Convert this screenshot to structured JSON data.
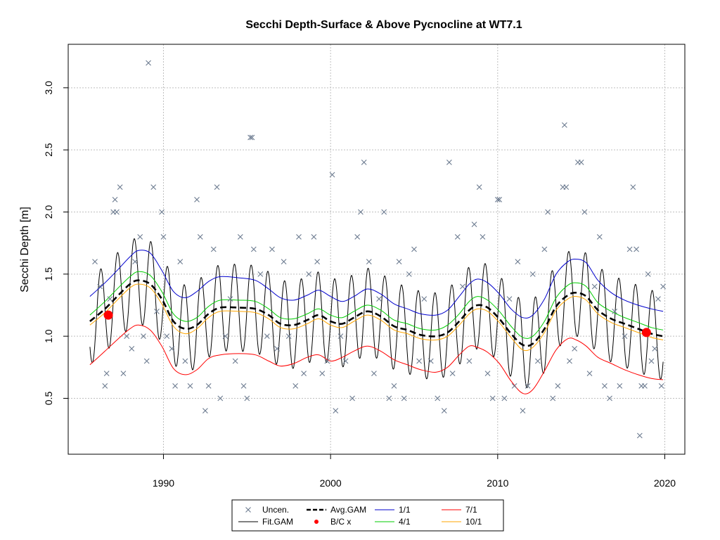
{
  "chart_data": {
    "type": "line",
    "title": "Secchi Depth-Surface & Above Pycnocline at WT7.1",
    "xlabel": "",
    "ylabel": "Secchi Depth [m]",
    "xlim": [
      1984.3,
      2021.2
    ],
    "ylim": [
      0.05,
      3.35
    ],
    "x_ticks": [
      1990,
      2000,
      2010,
      2020
    ],
    "x_tick_labels": [
      "1990",
      "2000",
      "2010",
      "2020"
    ],
    "y_ticks": [
      0.5,
      1.0,
      1.5,
      2.0,
      2.5,
      3.0
    ],
    "y_tick_labels": [
      "0.5",
      "1.0",
      "1.5",
      "2.0",
      "2.5",
      "3.0"
    ],
    "grid": true,
    "legend_position": "bottom-center",
    "colors": {
      "uncen": "#6b7a8f",
      "fit_gam": "#000000",
      "avg_gam": "#000000",
      "bc_x": "#ff0000",
      "ci_1_1": "#0000cd",
      "ci_4_1": "#00cd00",
      "ci_7_1": "#ff0000",
      "ci_10_1": "#ffa500",
      "grid": "#bfbfbf"
    },
    "legend": [
      {
        "key": "uncen",
        "label": "Uncen."
      },
      {
        "key": "avg_gam",
        "label": "Avg.GAM"
      },
      {
        "key": "ci_1_1",
        "label": "1/1"
      },
      {
        "key": "ci_7_1",
        "label": "7/1"
      },
      {
        "key": "fit_gam",
        "label": "Fit.GAM"
      },
      {
        "key": "bc_x",
        "label": "B/C x"
      },
      {
        "key": "ci_4_1",
        "label": "4/1"
      },
      {
        "key": "ci_10_1",
        "label": "10/1"
      }
    ],
    "series": [
      {
        "key": "avg_gam",
        "x": [
          1985.6,
          1986.5,
          1987.3,
          1988.0,
          1988.5,
          1989.2,
          1989.9,
          1990.6,
          1991.3,
          1992.0,
          1992.7,
          1993.4,
          1994.5,
          1995.5,
          1996.3,
          1997.0,
          1997.8,
          1998.6,
          1999.3,
          2000.0,
          2000.7,
          2001.4,
          2002.2,
          2003.0,
          2003.8,
          2004.6,
          2005.4,
          2006.3,
          2007.0,
          2007.7,
          2008.3,
          2008.8,
          2009.4,
          2010.1,
          2010.8,
          2011.5,
          2012.1,
          2012.8,
          2013.5,
          2014.2,
          2014.7,
          2015.3,
          2016.0,
          2016.8,
          2017.6,
          2018.4,
          2019.2,
          2019.9
        ],
        "values": [
          1.12,
          1.22,
          1.33,
          1.42,
          1.45,
          1.42,
          1.3,
          1.12,
          1.06,
          1.09,
          1.18,
          1.23,
          1.23,
          1.22,
          1.17,
          1.1,
          1.09,
          1.13,
          1.17,
          1.12,
          1.1,
          1.15,
          1.2,
          1.16,
          1.08,
          1.05,
          1.01,
          1.0,
          1.03,
          1.12,
          1.21,
          1.25,
          1.23,
          1.14,
          1.02,
          0.93,
          0.94,
          1.06,
          1.24,
          1.33,
          1.35,
          1.32,
          1.21,
          1.14,
          1.1,
          1.06,
          1.02,
          1.0
        ]
      },
      {
        "key": "ci_1_1",
        "x": [
          1985.6,
          1986.5,
          1987.3,
          1988.0,
          1988.5,
          1989.2,
          1989.9,
          1990.6,
          1991.3,
          1992.0,
          1992.7,
          1993.4,
          1994.5,
          1995.5,
          1996.3,
          1997.0,
          1997.8,
          1998.6,
          1999.3,
          2000.0,
          2000.7,
          2001.4,
          2002.2,
          2003.0,
          2003.8,
          2004.6,
          2005.4,
          2006.3,
          2007.0,
          2007.7,
          2008.3,
          2008.8,
          2009.4,
          2010.1,
          2010.8,
          2011.5,
          2012.1,
          2012.8,
          2013.5,
          2014.2,
          2014.7,
          2015.3,
          2016.0,
          2016.8,
          2017.6,
          2018.4,
          2019.2,
          2019.9
        ],
        "values": [
          1.32,
          1.43,
          1.54,
          1.64,
          1.69,
          1.67,
          1.53,
          1.36,
          1.31,
          1.36,
          1.44,
          1.48,
          1.47,
          1.45,
          1.38,
          1.31,
          1.29,
          1.33,
          1.37,
          1.32,
          1.28,
          1.32,
          1.38,
          1.34,
          1.26,
          1.22,
          1.18,
          1.17,
          1.21,
          1.32,
          1.42,
          1.46,
          1.43,
          1.34,
          1.22,
          1.15,
          1.17,
          1.3,
          1.5,
          1.6,
          1.62,
          1.59,
          1.45,
          1.35,
          1.29,
          1.25,
          1.22,
          1.2
        ]
      },
      {
        "key": "ci_4_1",
        "x": [
          1985.6,
          1986.5,
          1987.3,
          1988.0,
          1988.5,
          1989.2,
          1989.9,
          1990.6,
          1991.3,
          1992.0,
          1992.7,
          1993.4,
          1994.5,
          1995.5,
          1996.3,
          1997.0,
          1997.8,
          1998.6,
          1999.3,
          2000.0,
          2000.7,
          2001.4,
          2002.2,
          2003.0,
          2003.8,
          2004.6,
          2005.4,
          2006.3,
          2007.0,
          2007.7,
          2008.3,
          2008.8,
          2009.4,
          2010.1,
          2010.8,
          2011.5,
          2012.1,
          2012.8,
          2013.5,
          2014.2,
          2014.7,
          2015.3,
          2016.0,
          2016.8,
          2017.6,
          2018.4,
          2019.2,
          2019.9
        ],
        "values": [
          1.17,
          1.28,
          1.39,
          1.48,
          1.52,
          1.49,
          1.36,
          1.18,
          1.12,
          1.15,
          1.24,
          1.29,
          1.29,
          1.28,
          1.22,
          1.15,
          1.14,
          1.18,
          1.22,
          1.17,
          1.15,
          1.2,
          1.25,
          1.21,
          1.13,
          1.1,
          1.06,
          1.05,
          1.09,
          1.18,
          1.28,
          1.32,
          1.29,
          1.2,
          1.08,
          0.99,
          1.0,
          1.12,
          1.31,
          1.41,
          1.43,
          1.4,
          1.27,
          1.2,
          1.15,
          1.11,
          1.07,
          1.05
        ]
      },
      {
        "key": "ci_10_1",
        "x": [
          1985.6,
          1986.5,
          1987.3,
          1988.0,
          1988.5,
          1989.2,
          1989.9,
          1990.6,
          1991.3,
          1992.0,
          1992.7,
          1993.4,
          1994.5,
          1995.5,
          1996.3,
          1997.0,
          1997.8,
          1998.6,
          1999.3,
          2000.0,
          2000.7,
          2001.4,
          2002.2,
          2003.0,
          2003.8,
          2004.6,
          2005.4,
          2006.3,
          2007.0,
          2007.7,
          2008.3,
          2008.8,
          2009.4,
          2010.1,
          2010.8,
          2011.5,
          2012.1,
          2012.8,
          2013.5,
          2014.2,
          2014.7,
          2015.3,
          2016.0,
          2016.8,
          2017.6,
          2018.4,
          2019.2,
          2019.9
        ],
        "values": [
          1.09,
          1.19,
          1.3,
          1.39,
          1.42,
          1.39,
          1.26,
          1.08,
          1.02,
          1.06,
          1.15,
          1.2,
          1.2,
          1.19,
          1.14,
          1.07,
          1.06,
          1.1,
          1.14,
          1.09,
          1.07,
          1.12,
          1.17,
          1.13,
          1.05,
          1.02,
          0.98,
          0.97,
          1.0,
          1.09,
          1.18,
          1.22,
          1.2,
          1.11,
          0.99,
          0.89,
          0.91,
          1.03,
          1.21,
          1.3,
          1.32,
          1.29,
          1.18,
          1.11,
          1.07,
          1.03,
          0.99,
          0.97
        ]
      },
      {
        "key": "ci_7_1",
        "x": [
          1985.6,
          1986.5,
          1987.3,
          1988.0,
          1988.5,
          1989.2,
          1989.9,
          1990.6,
          1991.3,
          1992.0,
          1992.7,
          1993.4,
          1994.5,
          1995.5,
          1996.3,
          1997.0,
          1997.8,
          1998.6,
          1999.3,
          2000.0,
          2000.7,
          2001.4,
          2002.2,
          2003.0,
          2003.8,
          2004.6,
          2005.4,
          2006.3,
          2007.0,
          2007.7,
          2008.3,
          2008.8,
          2009.4,
          2010.1,
          2010.8,
          2011.5,
          2012.1,
          2012.8,
          2013.5,
          2014.2,
          2014.7,
          2015.3,
          2016.0,
          2016.8,
          2017.6,
          2018.4,
          2019.2,
          2019.9
        ],
        "values": [
          0.77,
          0.88,
          0.98,
          1.06,
          1.09,
          1.05,
          0.92,
          0.74,
          0.69,
          0.73,
          0.82,
          0.85,
          0.86,
          0.85,
          0.8,
          0.76,
          0.78,
          0.83,
          0.85,
          0.8,
          0.83,
          0.88,
          0.92,
          0.88,
          0.81,
          0.77,
          0.73,
          0.71,
          0.75,
          0.85,
          0.92,
          0.91,
          0.87,
          0.78,
          0.64,
          0.54,
          0.57,
          0.72,
          0.89,
          0.98,
          0.97,
          0.92,
          0.83,
          0.78,
          0.73,
          0.69,
          0.66,
          0.65
        ]
      }
    ],
    "fit_gam": {
      "key": "fit_gam",
      "x_start": 1985.6,
      "x_end": 2019.9,
      "seasonal_amplitude_m": 0.35,
      "cycles_per_year": 1,
      "peak_fraction_of_year": 0.25
    },
    "bc_x_points": [
      {
        "x": 1986.7,
        "y": 1.17
      },
      {
        "x": 2018.9,
        "y": 1.03
      }
    ],
    "observations": [
      {
        "x": 1985.9,
        "y": 1.6
      },
      {
        "x": 1986.2,
        "y": 1.4
      },
      {
        "x": 1986.5,
        "y": 0.6
      },
      {
        "x": 1986.6,
        "y": 0.7
      },
      {
        "x": 1986.8,
        "y": 1.3
      },
      {
        "x": 1987.0,
        "y": 2.0
      },
      {
        "x": 1987.1,
        "y": 2.1
      },
      {
        "x": 1987.2,
        "y": 2.0
      },
      {
        "x": 1987.4,
        "y": 2.2
      },
      {
        "x": 1987.6,
        "y": 0.7
      },
      {
        "x": 1987.8,
        "y": 1.0
      },
      {
        "x": 1988.1,
        "y": 0.9
      },
      {
        "x": 1988.3,
        "y": 1.6
      },
      {
        "x": 1988.6,
        "y": 1.8
      },
      {
        "x": 1988.8,
        "y": 1.0
      },
      {
        "x": 1989.0,
        "y": 0.8
      },
      {
        "x": 1989.1,
        "y": 3.2
      },
      {
        "x": 1989.4,
        "y": 2.2
      },
      {
        "x": 1989.6,
        "y": 1.2
      },
      {
        "x": 1989.9,
        "y": 2.0
      },
      {
        "x": 1990.0,
        "y": 1.8
      },
      {
        "x": 1990.2,
        "y": 1.0
      },
      {
        "x": 1990.5,
        "y": 0.9
      },
      {
        "x": 1990.7,
        "y": 0.6
      },
      {
        "x": 1991.0,
        "y": 1.6
      },
      {
        "x": 1991.3,
        "y": 0.8
      },
      {
        "x": 1991.6,
        "y": 0.6
      },
      {
        "x": 1992.0,
        "y": 2.1
      },
      {
        "x": 1992.2,
        "y": 1.8
      },
      {
        "x": 1992.5,
        "y": 0.4
      },
      {
        "x": 1992.7,
        "y": 0.6
      },
      {
        "x": 1993.0,
        "y": 1.7
      },
      {
        "x": 1993.2,
        "y": 2.2
      },
      {
        "x": 1993.4,
        "y": 0.5
      },
      {
        "x": 1993.7,
        "y": 1.0
      },
      {
        "x": 1994.0,
        "y": 1.3
      },
      {
        "x": 1994.3,
        "y": 0.8
      },
      {
        "x": 1994.6,
        "y": 1.8
      },
      {
        "x": 1994.8,
        "y": 0.6
      },
      {
        "x": 1995.0,
        "y": 0.5
      },
      {
        "x": 1995.2,
        "y": 2.6
      },
      {
        "x": 1995.3,
        "y": 2.6
      },
      {
        "x": 1995.4,
        "y": 1.7
      },
      {
        "x": 1995.8,
        "y": 1.5
      },
      {
        "x": 1996.2,
        "y": 1.0
      },
      {
        "x": 1996.5,
        "y": 1.7
      },
      {
        "x": 1996.8,
        "y": 0.9
      },
      {
        "x": 1997.2,
        "y": 1.6
      },
      {
        "x": 1997.5,
        "y": 1.0
      },
      {
        "x": 1997.9,
        "y": 0.6
      },
      {
        "x": 1998.1,
        "y": 1.8
      },
      {
        "x": 1998.4,
        "y": 0.7
      },
      {
        "x": 1998.7,
        "y": 1.5
      },
      {
        "x": 1999.0,
        "y": 1.8
      },
      {
        "x": 1999.2,
        "y": 1.6
      },
      {
        "x": 1999.5,
        "y": 0.7
      },
      {
        "x": 1999.8,
        "y": 0.8
      },
      {
        "x": 2000.1,
        "y": 2.3
      },
      {
        "x": 2000.3,
        "y": 0.4
      },
      {
        "x": 2000.6,
        "y": 1.0
      },
      {
        "x": 2000.9,
        "y": 0.8
      },
      {
        "x": 2001.3,
        "y": 0.5
      },
      {
        "x": 2001.6,
        "y": 1.8
      },
      {
        "x": 2001.8,
        "y": 2.0
      },
      {
        "x": 2002.0,
        "y": 2.4
      },
      {
        "x": 2002.3,
        "y": 1.6
      },
      {
        "x": 2002.6,
        "y": 0.7
      },
      {
        "x": 2002.9,
        "y": 1.3
      },
      {
        "x": 2003.2,
        "y": 2.0
      },
      {
        "x": 2003.5,
        "y": 0.5
      },
      {
        "x": 2003.8,
        "y": 0.6
      },
      {
        "x": 2004.1,
        "y": 1.6
      },
      {
        "x": 2004.4,
        "y": 0.5
      },
      {
        "x": 2004.7,
        "y": 1.5
      },
      {
        "x": 2005.0,
        "y": 1.7
      },
      {
        "x": 2005.3,
        "y": 0.8
      },
      {
        "x": 2005.6,
        "y": 1.3
      },
      {
        "x": 2006.0,
        "y": 0.8
      },
      {
        "x": 2006.4,
        "y": 0.5
      },
      {
        "x": 2006.8,
        "y": 0.4
      },
      {
        "x": 2007.1,
        "y": 2.4
      },
      {
        "x": 2007.3,
        "y": 0.7
      },
      {
        "x": 2007.6,
        "y": 1.8
      },
      {
        "x": 2007.9,
        "y": 1.4
      },
      {
        "x": 2008.3,
        "y": 0.8
      },
      {
        "x": 2008.6,
        "y": 1.9
      },
      {
        "x": 2008.9,
        "y": 2.2
      },
      {
        "x": 2009.1,
        "y": 1.8
      },
      {
        "x": 2009.4,
        "y": 0.7
      },
      {
        "x": 2009.7,
        "y": 0.5
      },
      {
        "x": 2010.0,
        "y": 2.1
      },
      {
        "x": 2010.1,
        "y": 2.1
      },
      {
        "x": 2010.4,
        "y": 0.5
      },
      {
        "x": 2010.7,
        "y": 1.3
      },
      {
        "x": 2011.0,
        "y": 0.6
      },
      {
        "x": 2011.2,
        "y": 1.6
      },
      {
        "x": 2011.5,
        "y": 0.4
      },
      {
        "x": 2011.8,
        "y": 0.6
      },
      {
        "x": 2012.1,
        "y": 1.5
      },
      {
        "x": 2012.4,
        "y": 0.8
      },
      {
        "x": 2012.8,
        "y": 1.7
      },
      {
        "x": 2013.0,
        "y": 2.0
      },
      {
        "x": 2013.3,
        "y": 0.5
      },
      {
        "x": 2013.6,
        "y": 0.6
      },
      {
        "x": 2013.9,
        "y": 2.2
      },
      {
        "x": 2014.0,
        "y": 2.7
      },
      {
        "x": 2014.1,
        "y": 2.2
      },
      {
        "x": 2014.3,
        "y": 0.8
      },
      {
        "x": 2014.6,
        "y": 0.9
      },
      {
        "x": 2014.8,
        "y": 2.4
      },
      {
        "x": 2015.0,
        "y": 2.4
      },
      {
        "x": 2015.2,
        "y": 2.0
      },
      {
        "x": 2015.5,
        "y": 0.7
      },
      {
        "x": 2015.8,
        "y": 1.4
      },
      {
        "x": 2016.1,
        "y": 1.8
      },
      {
        "x": 2016.4,
        "y": 0.6
      },
      {
        "x": 2016.7,
        "y": 0.5
      },
      {
        "x": 2017.0,
        "y": 1.2
      },
      {
        "x": 2017.3,
        "y": 0.6
      },
      {
        "x": 2017.6,
        "y": 1.0
      },
      {
        "x": 2017.9,
        "y": 1.7
      },
      {
        "x": 2018.1,
        "y": 2.2
      },
      {
        "x": 2018.3,
        "y": 1.7
      },
      {
        "x": 2018.5,
        "y": 0.2
      },
      {
        "x": 2018.6,
        "y": 0.6
      },
      {
        "x": 2018.8,
        "y": 0.6
      },
      {
        "x": 2019.0,
        "y": 1.5
      },
      {
        "x": 2019.2,
        "y": 0.8
      },
      {
        "x": 2019.4,
        "y": 0.9
      },
      {
        "x": 2019.6,
        "y": 1.3
      },
      {
        "x": 2019.8,
        "y": 0.6
      },
      {
        "x": 2019.9,
        "y": 1.4
      }
    ]
  }
}
